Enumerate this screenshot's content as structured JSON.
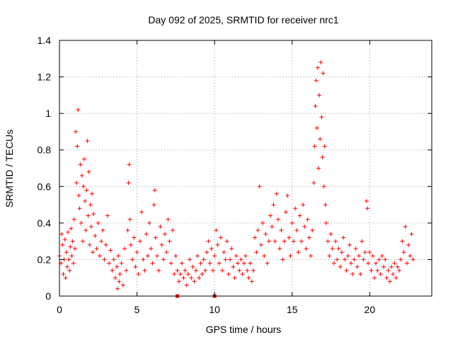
{
  "chart_data": {
    "type": "scatter",
    "title": "Day 092 of 2025, SRMTID for receiver nrc1",
    "xlabel": "GPS time / hours",
    "ylabel": "SRMTID / TECUs",
    "xlim": [
      0,
      24
    ],
    "ylim": [
      0,
      1.4
    ],
    "xticks": [
      0,
      5,
      10,
      15,
      20
    ],
    "xtick_labels": [
      "0",
      "5",
      "10",
      "15",
      "20"
    ],
    "yticks": [
      0,
      0.2,
      0.4,
      0.6,
      0.8,
      1.0,
      1.2,
      1.4
    ],
    "ytick_labels": [
      "0",
      "0.2",
      "0.4",
      "0.6",
      "0.8",
      "1",
      "1.2",
      "1.4"
    ],
    "grid": true,
    "marker": "+",
    "color": "#ff0000",
    "series": [
      {
        "name": "SRMTID",
        "points": [
          [
            0.0,
            0.22
          ],
          [
            0.1,
            0.18
          ],
          [
            0.15,
            0.34
          ],
          [
            0.2,
            0.28
          ],
          [
            0.25,
            0.12
          ],
          [
            0.3,
            0.2
          ],
          [
            0.35,
            0.31
          ],
          [
            0.4,
            0.1
          ],
          [
            0.45,
            0.24
          ],
          [
            0.5,
            0.16
          ],
          [
            0.55,
            0.35
          ],
          [
            0.6,
            0.2
          ],
          [
            0.65,
            0.14
          ],
          [
            0.7,
            0.27
          ],
          [
            0.75,
            0.37
          ],
          [
            0.8,
            0.22
          ],
          [
            0.85,
            0.3
          ],
          [
            0.9,
            0.18
          ],
          [
            0.95,
            0.42
          ],
          [
            1.0,
            0.26
          ],
          [
            1.05,
            0.9
          ],
          [
            1.1,
            0.62
          ],
          [
            1.15,
            0.82
          ],
          [
            1.2,
            1.02
          ],
          [
            1.25,
            0.55
          ],
          [
            1.3,
            0.48
          ],
          [
            1.35,
            0.72
          ],
          [
            1.4,
            0.4
          ],
          [
            1.45,
            0.66
          ],
          [
            1.5,
            0.3
          ],
          [
            1.55,
            0.6
          ],
          [
            1.6,
            0.75
          ],
          [
            1.65,
            0.52
          ],
          [
            1.7,
            0.36
          ],
          [
            1.75,
            0.58
          ],
          [
            1.8,
            0.85
          ],
          [
            1.85,
            0.44
          ],
          [
            1.9,
            0.68
          ],
          [
            1.95,
            0.28
          ],
          [
            2.0,
            0.5
          ],
          [
            2.05,
            0.38
          ],
          [
            2.1,
            0.56
          ],
          [
            2.15,
            0.24
          ],
          [
            2.2,
            0.45
          ],
          [
            2.3,
            0.33
          ],
          [
            2.4,
            0.26
          ],
          [
            2.5,
            0.4
          ],
          [
            2.6,
            0.22
          ],
          [
            2.7,
            0.3
          ],
          [
            2.8,
            0.36
          ],
          [
            2.9,
            0.2
          ],
          [
            3.0,
            0.28
          ],
          [
            3.1,
            0.44
          ],
          [
            3.2,
            0.18
          ],
          [
            3.3,
            0.25
          ],
          [
            3.4,
            0.14
          ],
          [
            3.5,
            0.2
          ],
          [
            3.6,
            0.1
          ],
          [
            3.7,
            0.16
          ],
          [
            3.75,
            0.04
          ],
          [
            3.8,
            0.22
          ],
          [
            3.85,
            0.08
          ],
          [
            3.9,
            0.12
          ],
          [
            4.0,
            0.18
          ],
          [
            4.1,
            0.06
          ],
          [
            4.2,
            0.26
          ],
          [
            4.3,
            0.14
          ],
          [
            4.4,
            0.36
          ],
          [
            4.45,
            0.62
          ],
          [
            4.5,
            0.72
          ],
          [
            4.55,
            0.42
          ],
          [
            4.6,
            0.28
          ],
          [
            4.7,
            0.2
          ],
          [
            4.8,
            0.32
          ],
          [
            4.9,
            0.16
          ],
          [
            5.0,
            0.24
          ],
          [
            5.1,
            0.12
          ],
          [
            5.2,
            0.3
          ],
          [
            5.3,
            0.46
          ],
          [
            5.4,
            0.2
          ],
          [
            5.5,
            0.14
          ],
          [
            5.6,
            0.34
          ],
          [
            5.7,
            0.22
          ],
          [
            5.8,
            0.4
          ],
          [
            5.9,
            0.26
          ],
          [
            6.0,
            0.18
          ],
          [
            6.1,
            0.5
          ],
          [
            6.15,
            0.58
          ],
          [
            6.2,
            0.32
          ],
          [
            6.3,
            0.22
          ],
          [
            6.4,
            0.14
          ],
          [
            6.5,
            0.38
          ],
          [
            6.6,
            0.28
          ],
          [
            6.7,
            0.2
          ],
          [
            6.8,
            0.34
          ],
          [
            6.9,
            0.24
          ],
          [
            7.0,
            0.42
          ],
          [
            7.1,
            0.3
          ],
          [
            7.2,
            0.18
          ],
          [
            7.3,
            0.36
          ],
          [
            7.4,
            0.12
          ],
          [
            7.5,
            0.22
          ],
          [
            7.6,
            0.14
          ],
          [
            7.7,
            0.08
          ],
          [
            7.8,
            0.12
          ],
          [
            7.9,
            0.18
          ],
          [
            8.0,
            0.1
          ],
          [
            8.1,
            0.14
          ],
          [
            8.2,
            0.06
          ],
          [
            8.3,
            0.12
          ],
          [
            8.4,
            0.2
          ],
          [
            8.5,
            0.1
          ],
          [
            8.6,
            0.16
          ],
          [
            8.7,
            0.08
          ],
          [
            8.8,
            0.14
          ],
          [
            8.9,
            0.22
          ],
          [
            9.0,
            0.1
          ],
          [
            9.1,
            0.18
          ],
          [
            9.2,
            0.12
          ],
          [
            9.3,
            0.2
          ],
          [
            9.4,
            0.14
          ],
          [
            9.5,
            0.24
          ],
          [
            9.6,
            0.3
          ],
          [
            9.7,
            0.18
          ],
          [
            9.8,
            0.26
          ],
          [
            9.9,
            0.14
          ],
          [
            10.0,
            0.22
          ],
          [
            10.1,
            0.36
          ],
          [
            10.2,
            0.28
          ],
          [
            10.3,
            0.18
          ],
          [
            10.4,
            0.32
          ],
          [
            10.5,
            0.14
          ],
          [
            10.6,
            0.24
          ],
          [
            10.7,
            0.2
          ],
          [
            10.8,
            0.3
          ],
          [
            10.9,
            0.12
          ],
          [
            11.0,
            0.2
          ],
          [
            11.1,
            0.26
          ],
          [
            11.2,
            0.16
          ],
          [
            11.3,
            0.1
          ],
          [
            11.4,
            0.22
          ],
          [
            11.5,
            0.18
          ],
          [
            11.6,
            0.14
          ],
          [
            11.7,
            0.2
          ],
          [
            11.8,
            0.12
          ],
          [
            11.9,
            0.18
          ],
          [
            12.0,
            0.22
          ],
          [
            12.1,
            0.14
          ],
          [
            12.2,
            0.1
          ],
          [
            12.3,
            0.18
          ],
          [
            12.4,
            0.08
          ],
          [
            12.5,
            0.14
          ],
          [
            12.6,
            0.32
          ],
          [
            12.7,
            0.24
          ],
          [
            12.8,
            0.36
          ],
          [
            12.9,
            0.6
          ],
          [
            13.0,
            0.28
          ],
          [
            13.1,
            0.4
          ],
          [
            13.2,
            0.22
          ],
          [
            13.3,
            0.34
          ],
          [
            13.4,
            0.18
          ],
          [
            13.5,
            0.3
          ],
          [
            13.6,
            0.44
          ],
          [
            13.7,
            0.38
          ],
          [
            13.8,
            0.5
          ],
          [
            13.9,
            0.3
          ],
          [
            14.0,
            0.56
          ],
          [
            14.1,
            0.42
          ],
          [
            14.2,
            0.26
          ],
          [
            14.3,
            0.36
          ],
          [
            14.4,
            0.2
          ],
          [
            14.5,
            0.3
          ],
          [
            14.6,
            0.46
          ],
          [
            14.7,
            0.55
          ],
          [
            14.8,
            0.32
          ],
          [
            14.9,
            0.22
          ],
          [
            15.0,
            0.4
          ],
          [
            15.1,
            0.3
          ],
          [
            15.2,
            0.48
          ],
          [
            15.3,
            0.36
          ],
          [
            15.4,
            0.24
          ],
          [
            15.5,
            0.44
          ],
          [
            15.6,
            0.3
          ],
          [
            15.7,
            0.5
          ],
          [
            15.8,
            0.38
          ],
          [
            15.9,
            0.26
          ],
          [
            16.0,
            0.42
          ],
          [
            16.1,
            0.32
          ],
          [
            16.2,
            0.22
          ],
          [
            16.3,
            0.36
          ],
          [
            16.4,
            0.62
          ],
          [
            16.45,
            0.82
          ],
          [
            16.5,
            1.04
          ],
          [
            16.55,
            1.18
          ],
          [
            16.6,
            0.92
          ],
          [
            16.65,
            1.25
          ],
          [
            16.7,
            0.7
          ],
          [
            16.75,
            1.1
          ],
          [
            16.8,
            0.86
          ],
          [
            16.85,
            1.28
          ],
          [
            16.9,
            0.98
          ],
          [
            16.95,
            0.76
          ],
          [
            17.0,
            1.22
          ],
          [
            17.05,
            0.6
          ],
          [
            17.1,
            0.82
          ],
          [
            17.15,
            0.5
          ],
          [
            17.2,
            0.4
          ],
          [
            17.3,
            0.3
          ],
          [
            17.4,
            0.22
          ],
          [
            17.5,
            0.34
          ],
          [
            17.6,
            0.26
          ],
          [
            17.7,
            0.18
          ],
          [
            17.8,
            0.3
          ],
          [
            17.9,
            0.2
          ],
          [
            18.0,
            0.26
          ],
          [
            18.1,
            0.16
          ],
          [
            18.2,
            0.24
          ],
          [
            18.3,
            0.32
          ],
          [
            18.4,
            0.2
          ],
          [
            18.5,
            0.14
          ],
          [
            18.6,
            0.22
          ],
          [
            18.7,
            0.28
          ],
          [
            18.8,
            0.18
          ],
          [
            18.9,
            0.12
          ],
          [
            19.0,
            0.2
          ],
          [
            19.1,
            0.26
          ],
          [
            19.2,
            0.16
          ],
          [
            19.3,
            0.22
          ],
          [
            19.4,
            0.12
          ],
          [
            19.5,
            0.3
          ],
          [
            19.6,
            0.2
          ],
          [
            19.7,
            0.24
          ],
          [
            19.8,
            0.52
          ],
          [
            19.85,
            0.48
          ],
          [
            19.9,
            0.18
          ],
          [
            20.0,
            0.24
          ],
          [
            20.1,
            0.14
          ],
          [
            20.2,
            0.22
          ],
          [
            20.3,
            0.1
          ],
          [
            20.4,
            0.18
          ],
          [
            20.5,
            0.14
          ],
          [
            20.6,
            0.2
          ],
          [
            20.7,
            0.12
          ],
          [
            20.8,
            0.22
          ],
          [
            20.9,
            0.16
          ],
          [
            21.0,
            0.2
          ],
          [
            21.1,
            0.1
          ],
          [
            21.2,
            0.14
          ],
          [
            21.3,
            0.08
          ],
          [
            21.4,
            0.16
          ],
          [
            21.5,
            0.12
          ],
          [
            21.6,
            0.18
          ],
          [
            21.7,
            0.1
          ],
          [
            21.8,
            0.16
          ],
          [
            21.9,
            0.14
          ],
          [
            22.0,
            0.2
          ],
          [
            22.1,
            0.3
          ],
          [
            22.2,
            0.24
          ],
          [
            22.3,
            0.38
          ],
          [
            22.4,
            0.18
          ],
          [
            22.5,
            0.28
          ],
          [
            22.6,
            0.22
          ],
          [
            22.7,
            0.34
          ],
          [
            22.8,
            0.2
          ]
        ]
      }
    ],
    "bottom_markers": [
      7.6,
      10.0
    ]
  }
}
